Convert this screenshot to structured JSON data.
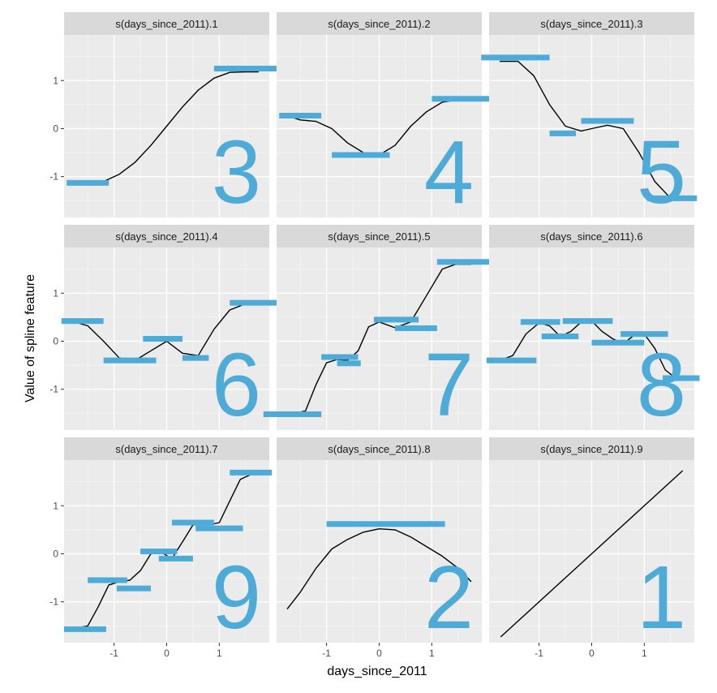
{
  "chart_data": {
    "type": "line",
    "facet_layout": {
      "rows": 3,
      "cols": 3
    },
    "xlabel": "days_since_2011",
    "ylabel": "Value of spline feature",
    "xlim": [
      -1.95,
      1.95
    ],
    "ylim": [
      -1.85,
      1.95
    ],
    "x_ticks": [
      -1,
      0,
      1
    ],
    "x_tick_labels": [
      "-1",
      "0",
      "1"
    ],
    "y_ticks": [
      -1,
      0,
      1
    ],
    "y_tick_labels": [
      "-1",
      "0",
      "1"
    ],
    "grid": true,
    "colors": {
      "panel_background": "#ebebeb",
      "grid_major": "#ffffff",
      "strip_background": "#d9d9d9",
      "curve": "#000000",
      "overlay": "#4eaad6"
    },
    "panels": [
      {
        "title": "s(days_since_2011).1",
        "curve": [
          [
            -1.75,
            -1.1
          ],
          [
            -1.5,
            -1.12
          ],
          [
            -1.2,
            -1.1
          ],
          [
            -0.9,
            -0.95
          ],
          [
            -0.6,
            -0.7
          ],
          [
            -0.3,
            -0.35
          ],
          [
            0.0,
            0.05
          ],
          [
            0.3,
            0.45
          ],
          [
            0.6,
            0.8
          ],
          [
            0.9,
            1.05
          ],
          [
            1.2,
            1.17
          ],
          [
            1.5,
            1.18
          ],
          [
            1.75,
            1.18
          ]
        ],
        "segments": [
          {
            "x1": -1.9,
            "x2": -1.1,
            "y": -1.13
          },
          {
            "x1": 0.9,
            "x2": 2.1,
            "y": 1.25
          }
        ],
        "number": "3"
      },
      {
        "title": "s(days_since_2011).2",
        "curve": [
          [
            -1.75,
            0.27
          ],
          [
            -1.5,
            0.18
          ],
          [
            -1.2,
            0.15
          ],
          [
            -0.9,
            0.0
          ],
          [
            -0.6,
            -0.3
          ],
          [
            -0.3,
            -0.5
          ],
          [
            0.0,
            -0.55
          ],
          [
            0.3,
            -0.35
          ],
          [
            0.6,
            0.05
          ],
          [
            0.9,
            0.35
          ],
          [
            1.2,
            0.55
          ],
          [
            1.5,
            0.6
          ],
          [
            1.75,
            0.6
          ]
        ],
        "segments": [
          {
            "x1": -1.9,
            "x2": -1.1,
            "y": 0.27
          },
          {
            "x1": -0.9,
            "x2": 0.2,
            "y": -0.55
          },
          {
            "x1": 1.0,
            "x2": 2.3,
            "y": 0.62
          }
        ],
        "number": "4"
      },
      {
        "title": "s(days_since_2011).3",
        "curve": [
          [
            -1.75,
            1.4
          ],
          [
            -1.4,
            1.4
          ],
          [
            -1.1,
            1.1
          ],
          [
            -0.8,
            0.5
          ],
          [
            -0.5,
            0.05
          ],
          [
            -0.2,
            -0.05
          ],
          [
            0.0,
            0.0
          ],
          [
            0.3,
            0.07
          ],
          [
            0.6,
            0.0
          ],
          [
            0.9,
            -0.5
          ],
          [
            1.2,
            -1.1
          ],
          [
            1.5,
            -1.45
          ],
          [
            1.75,
            -1.45
          ]
        ],
        "segments": [
          {
            "x1": -2.1,
            "x2": -0.8,
            "y": 1.48
          },
          {
            "x1": -0.8,
            "x2": -0.3,
            "y": -0.1
          },
          {
            "x1": -0.2,
            "x2": 0.8,
            "y": 0.16
          },
          {
            "x1": 1.05,
            "x2": 2.0,
            "y": -1.45
          }
        ],
        "number": "5"
      },
      {
        "title": "s(days_since_2011).4",
        "curve": [
          [
            -1.75,
            0.4
          ],
          [
            -1.5,
            0.32
          ],
          [
            -1.2,
            0.0
          ],
          [
            -0.9,
            -0.35
          ],
          [
            -0.6,
            -0.4
          ],
          [
            -0.3,
            -0.2
          ],
          [
            0.0,
            0.0
          ],
          [
            0.3,
            -0.25
          ],
          [
            0.6,
            -0.3
          ],
          [
            0.9,
            0.25
          ],
          [
            1.2,
            0.65
          ],
          [
            1.5,
            0.78
          ],
          [
            1.75,
            0.78
          ]
        ],
        "segments": [
          {
            "x1": -2.0,
            "x2": -1.2,
            "y": 0.42
          },
          {
            "x1": -1.2,
            "x2": -0.2,
            "y": -0.4
          },
          {
            "x1": -0.45,
            "x2": 0.3,
            "y": 0.05
          },
          {
            "x1": 0.3,
            "x2": 0.8,
            "y": -0.35
          },
          {
            "x1": 1.2,
            "x2": 2.1,
            "y": 0.8
          }
        ],
        "number": "6"
      },
      {
        "title": "s(days_since_2011).5",
        "curve": [
          [
            -1.6,
            -1.5
          ],
          [
            -1.4,
            -1.45
          ],
          [
            -1.2,
            -0.9
          ],
          [
            -1.0,
            -0.45
          ],
          [
            -0.8,
            -0.38
          ],
          [
            -0.6,
            -0.4
          ],
          [
            -0.4,
            -0.2
          ],
          [
            -0.2,
            0.3
          ],
          [
            0.0,
            0.4
          ],
          [
            0.3,
            0.28
          ],
          [
            0.6,
            0.4
          ],
          [
            0.9,
            0.95
          ],
          [
            1.2,
            1.5
          ],
          [
            1.45,
            1.6
          ],
          [
            1.75,
            1.6
          ]
        ],
        "segments": [
          {
            "x1": -2.2,
            "x2": -1.1,
            "y": -1.52
          },
          {
            "x1": -1.1,
            "x2": -0.4,
            "y": -0.33
          },
          {
            "x1": -0.8,
            "x2": -0.35,
            "y": -0.46
          },
          {
            "x1": -0.1,
            "x2": 0.75,
            "y": 0.45
          },
          {
            "x1": 0.3,
            "x2": 1.1,
            "y": 0.27
          },
          {
            "x1": 1.1,
            "x2": 2.1,
            "y": 1.65
          }
        ],
        "number": "7"
      },
      {
        "title": "s(days_since_2011).6",
        "curve": [
          [
            -1.75,
            -0.4
          ],
          [
            -1.5,
            -0.3
          ],
          [
            -1.25,
            0.15
          ],
          [
            -1.0,
            0.38
          ],
          [
            -0.8,
            0.32
          ],
          [
            -0.6,
            0.1
          ],
          [
            -0.4,
            0.2
          ],
          [
            -0.2,
            0.4
          ],
          [
            0.0,
            0.42
          ],
          [
            0.2,
            0.2
          ],
          [
            0.4,
            0.05
          ],
          [
            0.6,
            -0.05
          ],
          [
            0.8,
            0.12
          ],
          [
            1.0,
            0.15
          ],
          [
            1.2,
            -0.15
          ],
          [
            1.4,
            -0.6
          ],
          [
            1.6,
            -0.77
          ],
          [
            1.8,
            -0.77
          ]
        ],
        "segments": [
          {
            "x1": -2.0,
            "x2": -1.05,
            "y": -0.4
          },
          {
            "x1": -1.35,
            "x2": -0.6,
            "y": 0.4
          },
          {
            "x1": -0.95,
            "x2": -0.25,
            "y": 0.1
          },
          {
            "x1": -0.55,
            "x2": 0.4,
            "y": 0.42
          },
          {
            "x1": 0.0,
            "x2": 1.0,
            "y": -0.03
          },
          {
            "x1": 0.55,
            "x2": 1.45,
            "y": 0.15
          },
          {
            "x1": 1.35,
            "x2": 2.05,
            "y": -0.77
          }
        ],
        "number": "8"
      },
      {
        "title": "s(days_since_2011).7",
        "curve": [
          [
            -1.75,
            -1.55
          ],
          [
            -1.5,
            -1.5
          ],
          [
            -1.3,
            -1.1
          ],
          [
            -1.1,
            -0.65
          ],
          [
            -0.9,
            -0.58
          ],
          [
            -0.7,
            -0.55
          ],
          [
            -0.5,
            -0.35
          ],
          [
            -0.3,
            0.0
          ],
          [
            -0.1,
            0.03
          ],
          [
            0.1,
            -0.1
          ],
          [
            0.3,
            0.25
          ],
          [
            0.5,
            0.6
          ],
          [
            0.8,
            0.6
          ],
          [
            1.0,
            0.65
          ],
          [
            1.2,
            1.1
          ],
          [
            1.4,
            1.55
          ],
          [
            1.6,
            1.65
          ],
          [
            1.75,
            1.65
          ]
        ],
        "segments": [
          {
            "x1": -1.95,
            "x2": -1.15,
            "y": -1.57
          },
          {
            "x1": -1.5,
            "x2": -0.75,
            "y": -0.55
          },
          {
            "x1": -0.95,
            "x2": -0.3,
            "y": -0.72
          },
          {
            "x1": -0.5,
            "x2": 0.2,
            "y": 0.05
          },
          {
            "x1": -0.15,
            "x2": 0.5,
            "y": -0.1
          },
          {
            "x1": 0.1,
            "x2": 0.9,
            "y": 0.65
          },
          {
            "x1": 0.55,
            "x2": 1.45,
            "y": 0.53
          },
          {
            "x1": 1.2,
            "x2": 2.0,
            "y": 1.69
          }
        ],
        "number": "9"
      },
      {
        "title": "s(days_since_2011).8",
        "curve": [
          [
            -1.75,
            -1.15
          ],
          [
            -1.5,
            -0.8
          ],
          [
            -1.2,
            -0.3
          ],
          [
            -0.9,
            0.1
          ],
          [
            -0.6,
            0.3
          ],
          [
            -0.3,
            0.45
          ],
          [
            0.0,
            0.52
          ],
          [
            0.3,
            0.5
          ],
          [
            0.6,
            0.35
          ],
          [
            0.9,
            0.15
          ],
          [
            1.2,
            -0.05
          ],
          [
            1.5,
            -0.3
          ],
          [
            1.75,
            -0.58
          ]
        ],
        "segments": [
          {
            "x1": -1.0,
            "x2": 1.25,
            "y": 0.62
          }
        ],
        "number": "2"
      },
      {
        "title": "s(days_since_2011).9",
        "curve": [
          [
            -1.73,
            -1.73
          ],
          [
            1.73,
            1.73
          ]
        ],
        "segments": [],
        "number": "1"
      }
    ]
  }
}
